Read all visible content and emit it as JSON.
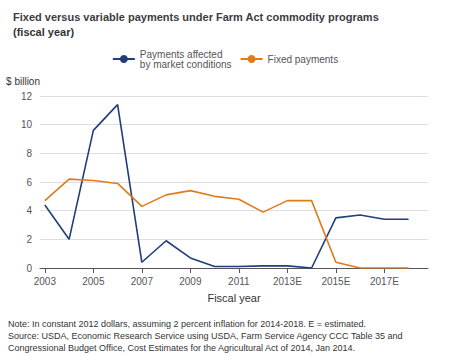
{
  "chart_data": {
    "type": "line",
    "title": "Fixed versus variable payments under Farm Act commodity programs",
    "subtitle": "(fiscal year)",
    "xlabel": "Fiscal year",
    "ylabel": "$ billion",
    "annotations": [
      "Note: In constant 2012 dollars, assuming 2 percent inflation for 2014-2018. E = estimated.",
      "Source: USDA, Economic Research Service using USDA, Farm Service Agency CCC Table 35 and",
      "Congressional Budget Office, Cost Estimates for the Agricultural Act of 2014, Jan 2014."
    ],
    "x": [
      2003,
      2004,
      2005,
      2006,
      2007,
      2008,
      2009,
      2010,
      2011,
      2012,
      2013,
      2014,
      2015,
      2016,
      2017,
      2018
    ],
    "series": [
      {
        "name": "Payments affected\nby market conditions",
        "color": "#1f3e7a",
        "values": [
          4.4,
          2.0,
          9.6,
          11.4,
          0.4,
          1.9,
          0.7,
          0.1,
          0.1,
          0.15,
          0.15,
          0.0,
          3.5,
          3.7,
          3.4,
          3.4
        ]
      },
      {
        "name": "Fixed payments",
        "color": "#e07b1a",
        "values": [
          4.7,
          6.2,
          6.1,
          5.9,
          4.3,
          5.1,
          5.4,
          5.0,
          4.8,
          3.9,
          4.7,
          4.7,
          0.4,
          0.0,
          0.0,
          0.0
        ]
      }
    ],
    "xlim": [
      2002.8,
      2018.8
    ],
    "xticks": [
      2003,
      2005,
      2007,
      2009,
      2011,
      {
        "value": 2013,
        "label": "2013E"
      },
      {
        "value": 2015,
        "label": "2015E"
      },
      {
        "value": 2017,
        "label": "2017E"
      }
    ],
    "ylim": [
      0,
      12
    ],
    "yticks": [
      0,
      2,
      4,
      6,
      8,
      10,
      12
    ],
    "grid": true,
    "legend": "top"
  }
}
